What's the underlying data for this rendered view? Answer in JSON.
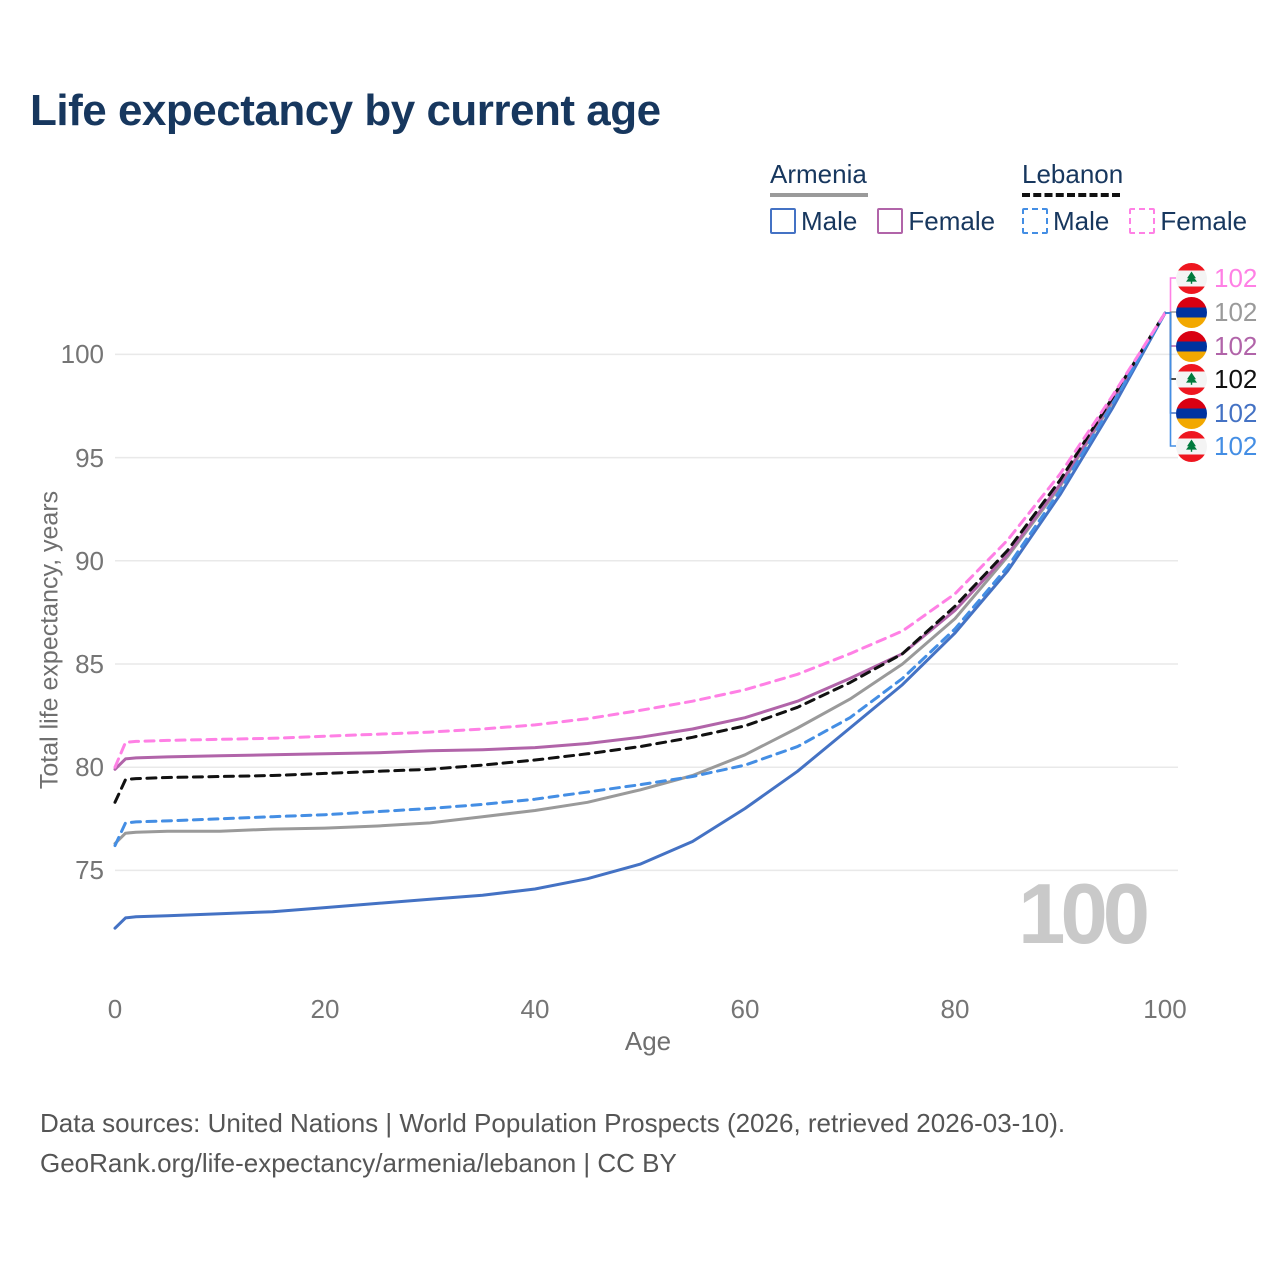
{
  "title": "Life expectancy by current age",
  "legend": {
    "groups": [
      {
        "label": "Armenia",
        "style": "solid",
        "underline_color": "#9a9a9a",
        "items": [
          {
            "label": "Male",
            "color": "#4472c4"
          },
          {
            "label": "Female",
            "color": "#b164a9"
          }
        ]
      },
      {
        "label": "Lebanon",
        "style": "dashed",
        "underline_color": "#111111",
        "items": [
          {
            "label": "Male",
            "color": "#448ee4"
          },
          {
            "label": "Female",
            "color": "#ff80e5"
          }
        ]
      }
    ]
  },
  "end_labels": [
    {
      "flag": "lebanon",
      "value": "102",
      "color": "#ff80e5"
    },
    {
      "flag": "armenia",
      "value": "102",
      "color": "#9a9a9a"
    },
    {
      "flag": "armenia",
      "value": "102",
      "color": "#b164a9"
    },
    {
      "flag": "lebanon",
      "value": "102",
      "color": "#111111"
    },
    {
      "flag": "armenia",
      "value": "102",
      "color": "#4472c4"
    },
    {
      "flag": "lebanon",
      "value": "102",
      "color": "#448ee4"
    }
  ],
  "watermark": "100",
  "footer": {
    "line1": "Data sources: United Nations | World Population Prospects (2026, retrieved 2026-03-10).",
    "line2": "GeoRank.org/life-expectancy/armenia/lebanon | CC BY"
  },
  "chart_data": {
    "type": "line",
    "title": "Life expectancy by current age",
    "xlabel": "Age",
    "ylabel": "Total life expectancy, years",
    "xlim": [
      0,
      100
    ],
    "ylim": [
      72,
      103
    ],
    "x_ticks": [
      0,
      20,
      40,
      60,
      80,
      100
    ],
    "y_ticks": [
      75,
      80,
      85,
      90,
      95,
      100
    ],
    "grid": "horizontal",
    "legend_position": "top-right",
    "x": [
      0,
      1,
      2,
      5,
      10,
      15,
      20,
      25,
      30,
      35,
      40,
      45,
      50,
      55,
      60,
      65,
      70,
      75,
      80,
      85,
      90,
      95,
      100
    ],
    "series": [
      {
        "name": "Armenia",
        "color": "#9a9a9a",
        "line": "solid",
        "values": [
          76.3,
          76.8,
          76.85,
          76.9,
          76.9,
          77.0,
          77.05,
          77.15,
          77.3,
          77.6,
          77.9,
          78.3,
          78.9,
          79.6,
          80.6,
          81.9,
          83.3,
          85.0,
          87.2,
          90.2,
          93.6,
          97.7,
          102
        ]
      },
      {
        "name": "Armenia Female",
        "color": "#b164a9",
        "line": "solid",
        "values": [
          79.9,
          80.4,
          80.45,
          80.5,
          80.55,
          80.6,
          80.65,
          80.7,
          80.8,
          80.85,
          80.95,
          81.15,
          81.45,
          81.85,
          82.4,
          83.2,
          84.3,
          85.5,
          87.6,
          90.3,
          93.7,
          97.8,
          102
        ]
      },
      {
        "name": "Armenia Male",
        "color": "#4472c4",
        "line": "solid",
        "values": [
          72.2,
          72.7,
          72.75,
          72.8,
          72.9,
          73.0,
          73.2,
          73.4,
          73.6,
          73.8,
          74.1,
          74.6,
          75.3,
          76.4,
          78.0,
          79.8,
          81.9,
          84.0,
          86.5,
          89.5,
          93.2,
          97.4,
          102
        ]
      },
      {
        "name": "Lebanon",
        "color": "#111111",
        "line": "dashed",
        "values": [
          78.3,
          79.4,
          79.45,
          79.5,
          79.55,
          79.6,
          79.7,
          79.8,
          79.9,
          80.1,
          80.35,
          80.65,
          81.0,
          81.45,
          82.0,
          82.9,
          84.1,
          85.5,
          87.8,
          90.5,
          93.9,
          97.9,
          102
        ]
      },
      {
        "name": "Lebanon Male",
        "color": "#448ee4",
        "line": "dashed",
        "values": [
          76.2,
          77.3,
          77.35,
          77.4,
          77.5,
          77.6,
          77.7,
          77.85,
          78.0,
          78.2,
          78.45,
          78.8,
          79.15,
          79.55,
          80.1,
          81.0,
          82.4,
          84.3,
          86.7,
          89.7,
          93.4,
          97.6,
          102
        ]
      },
      {
        "name": "Lebanon Female",
        "color": "#ff80e5",
        "line": "dashed",
        "values": [
          80.0,
          81.2,
          81.25,
          81.3,
          81.35,
          81.4,
          81.5,
          81.6,
          81.7,
          81.85,
          82.05,
          82.35,
          82.75,
          83.2,
          83.75,
          84.5,
          85.5,
          86.6,
          88.4,
          91.0,
          94.2,
          98.0,
          102
        ]
      }
    ]
  }
}
